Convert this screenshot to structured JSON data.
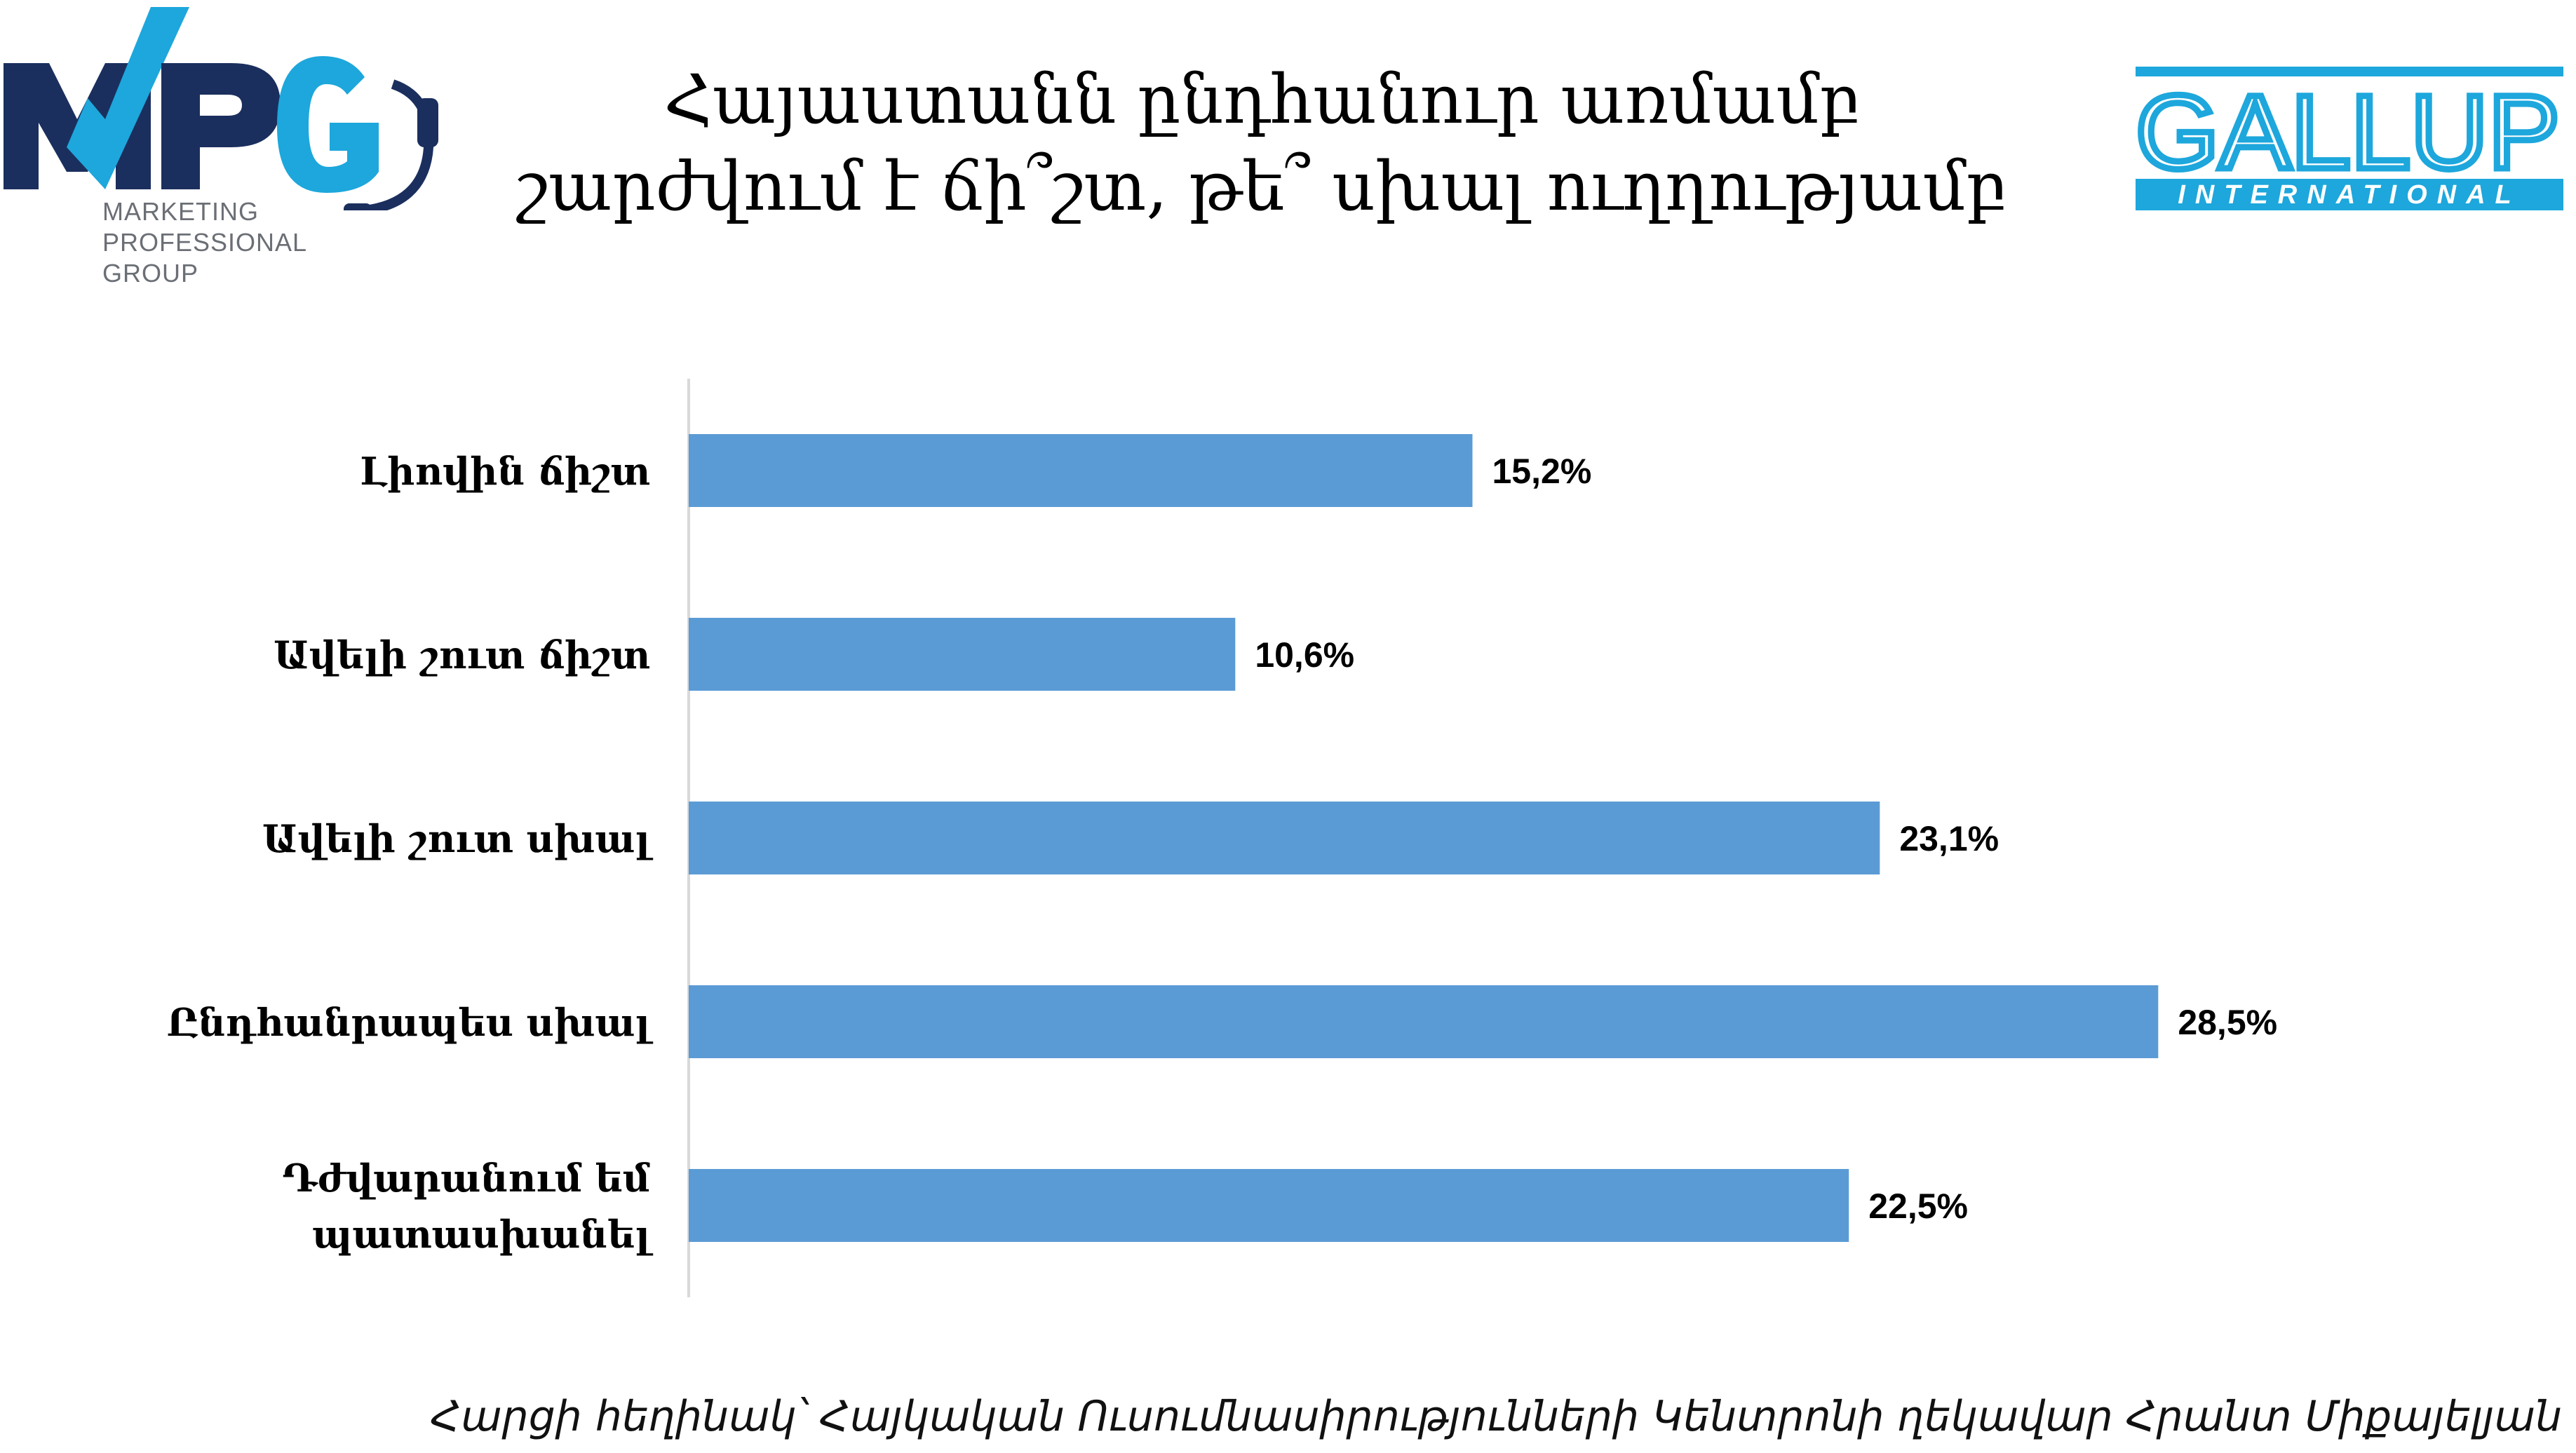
{
  "logos": {
    "mpg": {
      "wordmark": "MPG",
      "lines": [
        "MARKETING",
        "PROFESSIONAL",
        "GROUP"
      ],
      "colors": {
        "navy": "#1b2f5e",
        "cyan": "#1da7dc",
        "gray": "#6b6f75"
      }
    },
    "gallup": {
      "wordmark": "GALLUP",
      "sub": "INTERNATIONAL",
      "color": "#1da7dc"
    }
  },
  "chart_data": {
    "type": "bar",
    "orientation": "horizontal",
    "title_lines": [
      "Հայաստանն ընդհանուր առմամբ",
      "շարժվում է ճի՞շտ, թե՞ սխալ ուղղությամբ"
    ],
    "categories": [
      "Լիովին ճիշտ",
      "Ավելի շուտ ճիշտ",
      "Ավելի շուտ սխալ",
      "Ընդհանրապես սխալ",
      "Դժվարանում եմ պատասխանել"
    ],
    "category_lines": [
      [
        "Լիովին ճիշտ"
      ],
      [
        "Ավելի շուտ ճիշտ"
      ],
      [
        "Ավելի շուտ սխալ"
      ],
      [
        "Ընդհանրապես սխալ"
      ],
      [
        "Դժվարանում եմ",
        "պատասխանել"
      ]
    ],
    "values": [
      15.2,
      10.6,
      23.1,
      28.5,
      22.5
    ],
    "value_labels": [
      "15,2%",
      "10,6%",
      "23,1%",
      "28,5%",
      "22,5%"
    ],
    "xlim": [
      0,
      32.1
    ],
    "bar_color": "#5b9bd5",
    "grid": false
  },
  "footer": {
    "text": "Հարցի հեղինակ՝ Հայկական Ուսումնասիրությունների Կենտրոնի ղեկավար Հրանտ Միքայելյան"
  }
}
